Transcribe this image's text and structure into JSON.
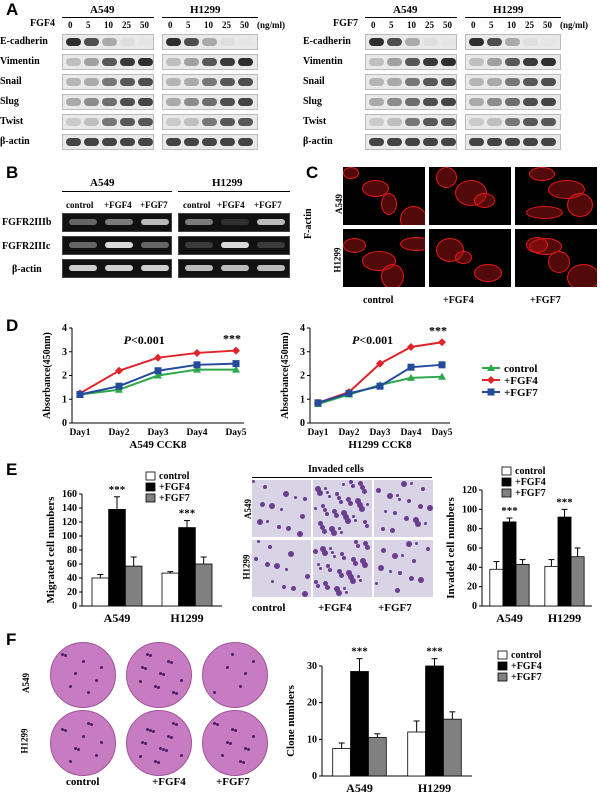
{
  "panel_labels": {
    "a": "A",
    "b": "B",
    "c": "C",
    "d": "D",
    "e": "E",
    "f": "F"
  },
  "blots_a": [
    {
      "factor": "FGF4",
      "lines": [
        "A549",
        "H1299"
      ],
      "doses": [
        "0",
        "5",
        "10",
        "25",
        "50"
      ],
      "unit": "(ng/ml)",
      "proteins": [
        "E-cadherin",
        "Vimentin",
        "Snail",
        "Slug",
        "Twist",
        "β-actin"
      ]
    },
    {
      "factor": "FGF7",
      "lines": [
        "A549",
        "H1299"
      ],
      "doses": [
        "0",
        "5",
        "10",
        "25",
        "50"
      ],
      "unit": "(ng/ml)",
      "proteins": [
        "E-cadherin",
        "Vimentin",
        "Snail",
        "Slug",
        "Twist",
        "β-actin"
      ]
    }
  ],
  "gel_b": {
    "lines": [
      "A549",
      "H1299"
    ],
    "lanes": [
      "control",
      "+FGF4",
      "+FGF7"
    ],
    "rows": [
      "FGFR2IIIb",
      "FGFR2IIIc",
      "β-actin"
    ]
  },
  "panel_c": {
    "stain": "F-actin",
    "rows": [
      "A549",
      "H1299"
    ],
    "columns": [
      "control",
      "+FGF4",
      "+FGF7"
    ]
  },
  "panel_e_image": {
    "title": "Invaded cells",
    "rows": [
      "A549",
      "H1299"
    ],
    "columns": [
      "control",
      "+FGF4",
      "+FGF7"
    ]
  },
  "panel_f_image": {
    "rows": [
      "A549",
      "H1299"
    ],
    "columns": [
      "control",
      "+FGF4",
      "+FGF7"
    ]
  },
  "chart_data": [
    {
      "type": "line",
      "xlabel": "A549 CCK8",
      "ylabel": "Absorbance(450nm)",
      "categories": [
        "Day1",
        "Day2",
        "Day3",
        "Day4",
        "Day5"
      ],
      "ylim": [
        0,
        4
      ],
      "yticks": [
        "0",
        "1",
        "2",
        "3",
        "4"
      ],
      "annotation": "P<0.001",
      "sig": "***",
      "legend": "right",
      "series": [
        {
          "name": "control",
          "color": "#2aa84a",
          "marker": "triangle",
          "values": [
            1.2,
            1.4,
            2.0,
            2.25,
            2.25
          ]
        },
        {
          "name": "+FGF4",
          "color": "#e0252a",
          "marker": "diamond",
          "values": [
            1.25,
            2.2,
            2.75,
            2.95,
            3.05
          ]
        },
        {
          "name": "+FGF7",
          "color": "#244a9b",
          "marker": "square",
          "values": [
            1.2,
            1.55,
            2.2,
            2.45,
            2.5
          ]
        }
      ]
    },
    {
      "type": "line",
      "xlabel": "H1299 CCK8",
      "ylabel": "Absorbance(450nm)",
      "categories": [
        "Day1",
        "Day2",
        "Day3",
        "Day4",
        "Day5"
      ],
      "ylim": [
        0,
        4
      ],
      "yticks": [
        "0",
        "1",
        "2",
        "3",
        "4"
      ],
      "annotation": "P<0.001",
      "sig": "***",
      "series": [
        {
          "name": "control",
          "color": "#2aa84a",
          "marker": "triangle",
          "values": [
            0.8,
            1.2,
            1.6,
            1.9,
            1.95
          ]
        },
        {
          "name": "+FGF4",
          "color": "#e0252a",
          "marker": "diamond",
          "values": [
            0.85,
            1.3,
            2.5,
            3.2,
            3.4
          ]
        },
        {
          "name": "+FGF7",
          "color": "#244a9b",
          "marker": "square",
          "values": [
            0.85,
            1.25,
            1.55,
            2.35,
            2.45
          ]
        }
      ]
    },
    {
      "type": "bar",
      "ylabel": "Migrated cell numbers",
      "categories": [
        "A549",
        "H1299"
      ],
      "ylim": [
        0,
        160
      ],
      "yticks": [
        "0",
        "20",
        "40",
        "60",
        "80",
        "100",
        "120",
        "140",
        "160"
      ],
      "sig": "***",
      "legend": "top",
      "series": [
        {
          "name": "control",
          "color": "#ffffff",
          "values": [
            40,
            47
          ],
          "err": [
            5,
            2
          ]
        },
        {
          "name": "+FGF4",
          "color": "#000000",
          "values": [
            138,
            112
          ],
          "err": [
            18,
            10
          ]
        },
        {
          "name": "+FGF7",
          "color": "#808080",
          "values": [
            57,
            60
          ],
          "err": [
            13,
            10
          ]
        }
      ]
    },
    {
      "type": "bar",
      "ylabel": "Invaded cell numbers",
      "categories": [
        "A549",
        "H1299"
      ],
      "ylim": [
        0,
        120
      ],
      "yticks": [
        "0",
        "20",
        "40",
        "60",
        "80",
        "100",
        "120"
      ],
      "sig": "***",
      "legend": "top",
      "series": [
        {
          "name": "control",
          "color": "#ffffff",
          "values": [
            38,
            41
          ],
          "err": [
            8,
            7
          ]
        },
        {
          "name": "+FGF4",
          "color": "#000000",
          "values": [
            87,
            92
          ],
          "err": [
            4,
            8
          ]
        },
        {
          "name": "+FGF7",
          "color": "#808080",
          "values": [
            43,
            51
          ],
          "err": [
            5,
            9
          ]
        }
      ]
    },
    {
      "type": "bar",
      "ylabel": "Clone numbers",
      "categories": [
        "A549",
        "H1299"
      ],
      "ylim": [
        0,
        30
      ],
      "yticks": [
        "0",
        "10",
        "20",
        "30"
      ],
      "sig": "***",
      "legend": "top-right",
      "series": [
        {
          "name": "control",
          "color": "#ffffff",
          "values": [
            7.5,
            12
          ],
          "err": [
            1.5,
            3
          ]
        },
        {
          "name": "+FGF4",
          "color": "#000000",
          "values": [
            28.5,
            30
          ],
          "err": [
            3.5,
            2
          ]
        },
        {
          "name": "+FGF7",
          "color": "#808080",
          "values": [
            10.5,
            15.5
          ],
          "err": [
            1,
            2
          ]
        }
      ]
    }
  ]
}
